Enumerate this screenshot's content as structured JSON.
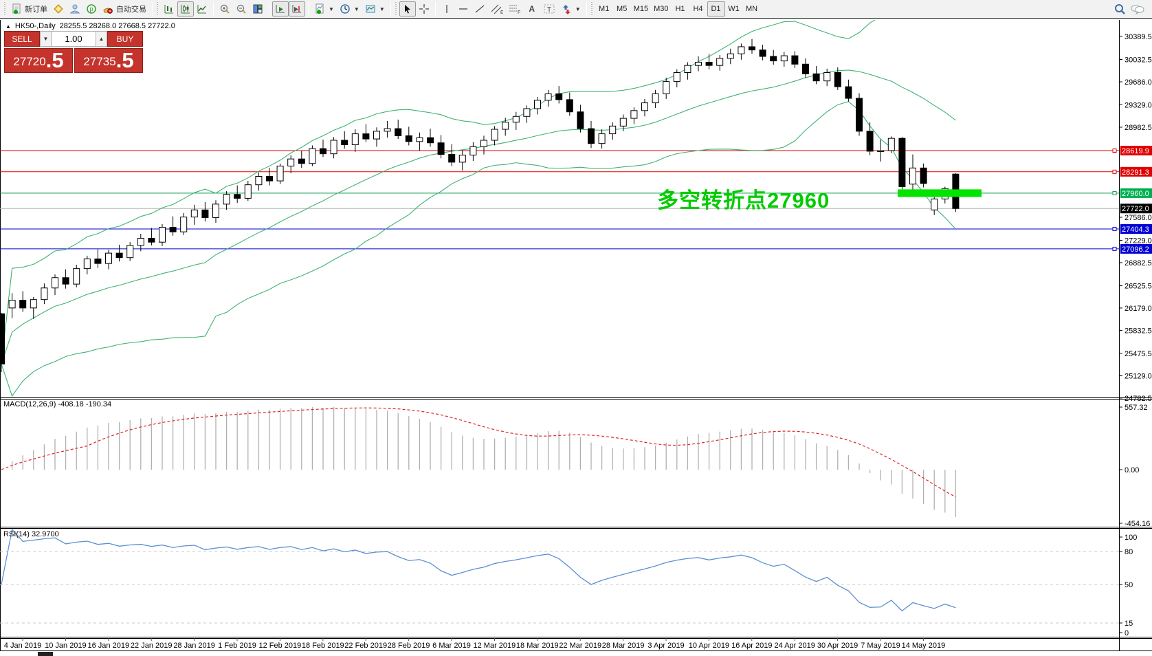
{
  "toolbar": {
    "new_order_label": "新订单",
    "autotrading_label": "自动交易",
    "timeframes": [
      "M1",
      "M5",
      "M15",
      "M30",
      "H1",
      "H4",
      "D1",
      "W1",
      "MN"
    ],
    "active_timeframe": "D1"
  },
  "symbol_header": {
    "expander": "▲",
    "symbol": "HK50-,Daily",
    "ohlc_text": "28255.5 28268.0 27668.5 27722.0"
  },
  "trade_panel": {
    "sell_label": "SELL",
    "buy_label": "BUY",
    "volume": "1.00",
    "spin_down": "▼",
    "spin_up": "▲",
    "sell_price_main": "27720",
    "sell_price_big": ".5",
    "buy_price_main": "27735",
    "buy_price_big": ".5"
  },
  "annotation": {
    "text": "多空转折点27960",
    "color": "#00cc00"
  },
  "chart_data": {
    "type": "candlestick",
    "symbol": "HK50-",
    "period": "Daily",
    "title": "HK50-,Daily",
    "latest_bar": {
      "open": 28255.5,
      "high": 28268.0,
      "low": 27668.5,
      "close": 27722.0
    },
    "date_labels": [
      "4 Jan 2019",
      "10 Jan 2019",
      "16 Jan 2019",
      "22 Jan 2019",
      "28 Jan 2019",
      "1 Feb 2019",
      "12 Feb 2019",
      "18 Feb 2019",
      "22 Feb 2019",
      "28 Feb 2019",
      "6 Mar 2019",
      "12 Mar 2019",
      "18 Mar 2019",
      "22 Mar 2019",
      "28 Mar 2019",
      "3 Apr 2019",
      "10 Apr 2019",
      "16 Apr 2019",
      "24 Apr 2019",
      "30 Apr 2019",
      "7 May 2019",
      "14 May 2019"
    ],
    "price_axis_ticks": [
      "30389.5",
      "30032.5",
      "29686.0",
      "29329.0",
      "28982.5",
      "27586.0",
      "27229.0",
      "26882.5",
      "26525.5",
      "26179.0",
      "25832.5",
      "25475.5",
      "25129.0",
      "24782.5"
    ],
    "price_lines": [
      {
        "label": "28619.9",
        "value": 28619.9,
        "line_color": "#e10000",
        "tag_color": "#e10000",
        "marker": true
      },
      {
        "label": "28291.3",
        "value": 28291.3,
        "line_color": "#e10000",
        "tag_color": "#e10000",
        "marker": true
      },
      {
        "label": "27960.0",
        "value": 27960.0,
        "line_color": "#009944",
        "tag_color": "#00b050",
        "marker": true
      },
      {
        "label": "27722.0",
        "value": 27722.0,
        "line_color": "#b4b4b4",
        "tag_color": "#000000",
        "marker": false
      },
      {
        "label": "27404.3",
        "value": 27404.3,
        "line_color": "#0000d4",
        "tag_color": "#0000d4",
        "marker": true
      },
      {
        "label": "27096.2",
        "value": 27096.2,
        "line_color": "#0000d4",
        "tag_color": "#0000d4",
        "marker": true
      }
    ],
    "highlight_bar": {
      "price": 27960,
      "color": "#00e400"
    },
    "bollinger": {
      "period": 20,
      "deviation": 2,
      "color": "#3cb371"
    },
    "indicators": {
      "macd": {
        "name": "MACD(12,26,9)",
        "main_value": "-408.18",
        "signal_value": "-190.34",
        "scale_top": "557.32",
        "scale_zero": "0.00",
        "scale_bottom": "-454.16",
        "histogram_color": "#b0b0b0",
        "signal_color": "#dd2222"
      },
      "rsi": {
        "name": "RSI(14)",
        "value": "32.9700",
        "line_color": "#5b8fd4",
        "levels": [
          "100",
          "80",
          "50",
          "15",
          "0"
        ],
        "dashed_levels": [
          80,
          50,
          15
        ]
      }
    },
    "candles": [
      [
        26090,
        26105,
        25185,
        25310
      ],
      [
        26180,
        26410,
        26020,
        26300
      ],
      [
        26300,
        26440,
        26120,
        26180
      ],
      [
        26180,
        26350,
        26010,
        26310
      ],
      [
        26310,
        26560,
        26240,
        26490
      ],
      [
        26490,
        26700,
        26380,
        26650
      ],
      [
        26650,
        26780,
        26480,
        26550
      ],
      [
        26550,
        26850,
        26500,
        26790
      ],
      [
        26790,
        26990,
        26700,
        26940
      ],
      [
        26940,
        27090,
        26800,
        26870
      ],
      [
        26870,
        27080,
        26780,
        27030
      ],
      [
        27030,
        27160,
        26900,
        26960
      ],
      [
        26960,
        27200,
        26910,
        27150
      ],
      [
        27150,
        27330,
        27060,
        27260
      ],
      [
        27260,
        27420,
        27150,
        27200
      ],
      [
        27200,
        27480,
        27140,
        27430
      ],
      [
        27430,
        27600,
        27300,
        27360
      ],
      [
        27360,
        27650,
        27310,
        27590
      ],
      [
        27590,
        27780,
        27470,
        27700
      ],
      [
        27700,
        27820,
        27520,
        27580
      ],
      [
        27580,
        27850,
        27500,
        27790
      ],
      [
        27790,
        27990,
        27700,
        27940
      ],
      [
        27940,
        28080,
        27810,
        27880
      ],
      [
        27880,
        28150,
        27840,
        28090
      ],
      [
        28090,
        28280,
        28000,
        28220
      ],
      [
        28220,
        28350,
        28080,
        28150
      ],
      [
        28150,
        28420,
        28100,
        28380
      ],
      [
        28380,
        28550,
        28270,
        28490
      ],
      [
        28490,
        28620,
        28350,
        28420
      ],
      [
        28420,
        28700,
        28380,
        28650
      ],
      [
        28650,
        28790,
        28520,
        28570
      ],
      [
        28570,
        28830,
        28500,
        28780
      ],
      [
        28780,
        28920,
        28650,
        28710
      ],
      [
        28710,
        28950,
        28600,
        28880
      ],
      [
        28880,
        29030,
        28750,
        28800
      ],
      [
        28800,
        28980,
        28680,
        28920
      ],
      [
        28920,
        29080,
        28820,
        28960
      ],
      [
        28960,
        29100,
        28800,
        28850
      ],
      [
        28850,
        28990,
        28700,
        28760
      ],
      [
        28760,
        28900,
        28620,
        28820
      ],
      [
        28820,
        28960,
        28680,
        28740
      ],
      [
        28740,
        28860,
        28500,
        28560
      ],
      [
        28560,
        28720,
        28380,
        28440
      ],
      [
        28440,
        28620,
        28310,
        28550
      ],
      [
        28550,
        28750,
        28460,
        28680
      ],
      [
        28680,
        28850,
        28560,
        28780
      ],
      [
        28780,
        29000,
        28700,
        28950
      ],
      [
        28950,
        29130,
        28850,
        29060
      ],
      [
        29060,
        29220,
        28940,
        29150
      ],
      [
        29150,
        29320,
        29050,
        29270
      ],
      [
        29270,
        29450,
        29180,
        29400
      ],
      [
        29400,
        29560,
        29300,
        29500
      ],
      [
        29500,
        29620,
        29350,
        29410
      ],
      [
        29410,
        29520,
        29160,
        29220
      ],
      [
        29220,
        29330,
        28900,
        28960
      ],
      [
        28960,
        29080,
        28660,
        28730
      ],
      [
        28730,
        28950,
        28650,
        28880
      ],
      [
        28880,
        29060,
        28790,
        29000
      ],
      [
        29000,
        29180,
        28920,
        29120
      ],
      [
        29120,
        29290,
        29030,
        29240
      ],
      [
        29240,
        29420,
        29150,
        29360
      ],
      [
        29360,
        29560,
        29280,
        29500
      ],
      [
        29500,
        29750,
        29420,
        29690
      ],
      [
        29690,
        29880,
        29600,
        29830
      ],
      [
        29830,
        29990,
        29720,
        29940
      ],
      [
        29940,
        30080,
        29850,
        29990
      ],
      [
        29990,
        30120,
        29880,
        29940
      ],
      [
        29940,
        30100,
        29860,
        30050
      ],
      [
        30050,
        30200,
        29960,
        30120
      ],
      [
        30120,
        30280,
        30030,
        30230
      ],
      [
        30230,
        30350,
        30120,
        30180
      ],
      [
        30180,
        30260,
        30020,
        30080
      ],
      [
        30080,
        30180,
        29950,
        30010
      ],
      [
        30010,
        30150,
        29920,
        30090
      ],
      [
        30090,
        30160,
        29900,
        29960
      ],
      [
        29960,
        30050,
        29750,
        29810
      ],
      [
        29810,
        29930,
        29650,
        29700
      ],
      [
        29700,
        29890,
        29620,
        29830
      ],
      [
        29830,
        29910,
        29560,
        29610
      ],
      [
        29610,
        29720,
        29380,
        29430
      ],
      [
        29430,
        29510,
        28850,
        28920
      ],
      [
        28920,
        29060,
        28550,
        28610
      ],
      [
        28610,
        28790,
        28450,
        28620
      ],
      [
        28620,
        28840,
        28580,
        28810
      ],
      [
        28810,
        28830,
        28020,
        28060
      ],
      [
        28100,
        28560,
        27990,
        28350
      ],
      [
        28350,
        28420,
        28050,
        28110
      ],
      [
        27700,
        27900,
        27620,
        27870
      ],
      [
        27870,
        28060,
        27800,
        28030
      ],
      [
        28255.5,
        28268,
        27668.5,
        27722
      ]
    ]
  }
}
